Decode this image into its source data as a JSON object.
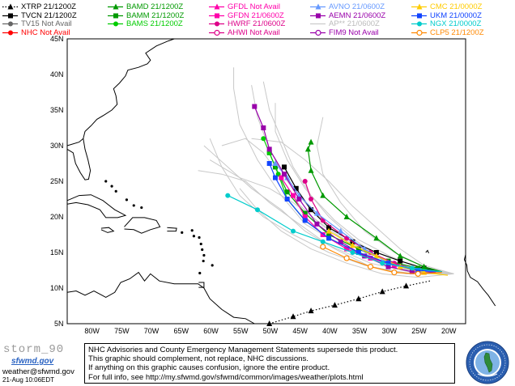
{
  "legend": [
    {
      "label": "XTRP 21/1200Z",
      "color": "#000000",
      "marker": "triangle",
      "dotted": true
    },
    {
      "label": "TVCN 21/1200Z",
      "color": "#000000",
      "marker": "square"
    },
    {
      "label": "TV15 Not Avail",
      "color": "#666666",
      "marker": "circle"
    },
    {
      "label": "NHC Not Avail",
      "color": "#ff0000",
      "marker": "circle"
    },
    {
      "label": "BAMD 21/1200Z",
      "color": "#009900",
      "marker": "triangle"
    },
    {
      "label": "BAMM 21/1200Z",
      "color": "#009900",
      "marker": "square"
    },
    {
      "label": "BAMS 21/1200Z",
      "color": "#00cc00",
      "marker": "circle"
    },
    {
      "label": "GFDL Not Avail",
      "color": "#ff00aa",
      "marker": "triangle"
    },
    {
      "label": "GFDN 21/0600Z",
      "color": "#ff00aa",
      "marker": "square"
    },
    {
      "label": "HWRF 21/0600Z",
      "color": "#dd0088",
      "marker": "circle"
    },
    {
      "label": "AHWI Not Avail",
      "color": "#dd0088",
      "marker": "ring"
    },
    {
      "label": "AVNO 21/0600Z",
      "color": "#6699ff",
      "marker": "triangle"
    },
    {
      "label": "AEMN 21/0600Z",
      "color": "#9900aa",
      "marker": "square"
    },
    {
      "label": "AP** 21/0600Z",
      "color": "#cccccc",
      "marker": "none"
    },
    {
      "label": "FIM9 Not Avail",
      "color": "#9900aa",
      "marker": "ring"
    },
    {
      "label": "CMC 21/0000Z",
      "color": "#ffcc00",
      "marker": "triangle"
    },
    {
      "label": "UKM 21/0000Z",
      "color": "#1144ff",
      "marker": "square"
    },
    {
      "label": "NGX 21/0000Z",
      "color": "#00cccc",
      "marker": "circle"
    },
    {
      "label": "CLP5 21/1200Z",
      "color": "#ff8800",
      "marker": "ring"
    }
  ],
  "map": {
    "lat_range": [
      5,
      45
    ],
    "lon_range": [
      -84,
      -17
    ],
    "lat_labels": [
      "45N",
      "40N",
      "35N",
      "30N",
      "25N",
      "20N",
      "15N",
      "10N",
      "5N"
    ],
    "lon_labels": [
      "80W",
      "75W",
      "70W",
      "65W",
      "60W",
      "55W",
      "50W",
      "45W",
      "40W",
      "35W",
      "30W",
      "25W",
      "20W"
    ],
    "tracks": [
      {
        "id": "XTRP",
        "color": "#000000",
        "marker": "triangle",
        "dotted": true,
        "points": [
          [
            -23,
            11
          ],
          [
            -27,
            10.3
          ],
          [
            -31,
            9.5
          ],
          [
            -35,
            8.5
          ],
          [
            -39,
            7.6
          ],
          [
            -43,
            6.8
          ],
          [
            -46,
            6
          ],
          [
            -50,
            5
          ]
        ]
      },
      {
        "id": "TVCN",
        "color": "#000000",
        "marker": "square",
        "points": [
          [
            -21,
            12.3
          ],
          [
            -24,
            12.8
          ],
          [
            -28,
            13.8
          ],
          [
            -32,
            15
          ],
          [
            -36,
            16.5
          ],
          [
            -40,
            18.5
          ],
          [
            -43,
            21
          ],
          [
            -45.5,
            24
          ],
          [
            -47.5,
            27
          ]
        ]
      },
      {
        "id": "BAMD",
        "color": "#009900",
        "marker": "triangle",
        "points": [
          [
            -21,
            12.3
          ],
          [
            -24,
            13
          ],
          [
            -28,
            14.5
          ],
          [
            -32,
            17
          ],
          [
            -37,
            20
          ],
          [
            -41,
            23
          ],
          [
            -43,
            26.5
          ],
          [
            -43.5,
            29.5
          ],
          [
            -43,
            30.5
          ]
        ]
      },
      {
        "id": "BAMM",
        "color": "#009900",
        "marker": "square",
        "points": [
          [
            -21,
            12.3
          ],
          [
            -25,
            12.8
          ],
          [
            -30,
            13.8
          ],
          [
            -35,
            15.5
          ],
          [
            -40,
            17.5
          ],
          [
            -44,
            20.5
          ],
          [
            -47,
            23.5
          ],
          [
            -49,
            27
          ],
          [
            -50,
            29
          ]
        ]
      },
      {
        "id": "BAMS",
        "color": "#00cc00",
        "marker": "circle",
        "points": [
          [
            -21,
            12.3
          ],
          [
            -25,
            12.5
          ],
          [
            -30,
            13.5
          ],
          [
            -35,
            15
          ],
          [
            -40,
            17
          ],
          [
            -44,
            19.5
          ],
          [
            -47,
            22.5
          ],
          [
            -48.5,
            26
          ],
          [
            -50,
            29
          ],
          [
            -51,
            31
          ]
        ]
      },
      {
        "id": "GFDN",
        "color": "#ff00aa",
        "marker": "square",
        "points": [
          [
            -22,
            12.2
          ],
          [
            -25,
            12.5
          ],
          [
            -29,
            13.2
          ],
          [
            -33,
            14.2
          ],
          [
            -37,
            15.5
          ],
          [
            -41,
            17.5
          ],
          [
            -44,
            20
          ],
          [
            -46,
            23
          ],
          [
            -48,
            25.5
          ]
        ]
      },
      {
        "id": "HWRF",
        "color": "#dd0088",
        "marker": "circle",
        "points": [
          [
            -22,
            12.2
          ],
          [
            -25,
            12.5
          ],
          [
            -29,
            13.5
          ],
          [
            -33,
            15
          ],
          [
            -37,
            17
          ],
          [
            -41,
            19.5
          ],
          [
            -43,
            22.5
          ],
          [
            -44,
            25
          ]
        ]
      },
      {
        "id": "AVNO",
        "color": "#6699ff",
        "marker": "triangle",
        "points": [
          [
            -22,
            12.2
          ],
          [
            -26,
            12.5
          ],
          [
            -30,
            13.5
          ],
          [
            -34,
            15.5
          ],
          [
            -38,
            18
          ],
          [
            -42,
            20.5
          ],
          [
            -45,
            23
          ],
          [
            -47,
            25.5
          ],
          [
            -49,
            27.5
          ]
        ]
      },
      {
        "id": "AEMN",
        "color": "#9900aa",
        "marker": "square",
        "points": [
          [
            -22,
            12.2
          ],
          [
            -26,
            12.3
          ],
          [
            -30,
            13
          ],
          [
            -34,
            14.5
          ],
          [
            -38,
            16.5
          ],
          [
            -42,
            19
          ],
          [
            -45,
            22.5
          ],
          [
            -47.5,
            26
          ],
          [
            -50,
            29.5
          ],
          [
            -51,
            32.5
          ],
          [
            -52.5,
            35.5
          ]
        ]
      },
      {
        "id": "CMC",
        "color": "#ffcc00",
        "marker": "triangle",
        "points": [
          [
            -20,
            11.8
          ],
          [
            -24,
            12.2
          ],
          [
            -28,
            13
          ],
          [
            -32,
            14.5
          ],
          [
            -36,
            16
          ],
          [
            -40,
            18
          ]
        ]
      },
      {
        "id": "UKM",
        "color": "#1144ff",
        "marker": "square",
        "points": [
          [
            -21,
            12.3
          ],
          [
            -25,
            12.5
          ],
          [
            -30,
            13.5
          ],
          [
            -35,
            15
          ],
          [
            -40,
            17
          ],
          [
            -44,
            19.5
          ],
          [
            -47,
            22.5
          ],
          [
            -49,
            25.5
          ],
          [
            -50,
            27.5
          ]
        ]
      },
      {
        "id": "NGX",
        "color": "#00cccc",
        "marker": "circle",
        "points": [
          [
            -21,
            12.3
          ],
          [
            -26,
            12.8
          ],
          [
            -31,
            13.5
          ],
          [
            -36,
            15
          ],
          [
            -41,
            16.5
          ],
          [
            -46,
            18
          ],
          [
            -52,
            21
          ],
          [
            -57,
            23
          ]
        ]
      },
      {
        "id": "CLP5",
        "color": "#ff8800",
        "marker": "ring",
        "points": [
          [
            -21,
            12.2
          ],
          [
            -25,
            12
          ],
          [
            -29,
            12.2
          ],
          [
            -33,
            13
          ],
          [
            -37,
            14.2
          ],
          [
            -41,
            15.8
          ]
        ]
      }
    ],
    "ensemble_color": "#c8c8c8"
  },
  "footer": {
    "storm_id": "storm_90",
    "logo_text": "sfwmd.gov",
    "email": "weather@sfwmd.gov",
    "date": "21-Aug 10:06EDT",
    "disclaimer": [
      "NHC Advisories and County Emergency Management Statements supersede this product.",
      "This graphic should complement, not replace, NHC discussions.",
      "If anything on this graphic causes confusion, ignore the entire product.",
      "For full info, see  http://my.sfwmd.gov/sfwmd/common/images/weather/plots.html"
    ],
    "seal_text": "SOUTH FLORIDA WATER MANAGEMENT DISTRICT"
  }
}
